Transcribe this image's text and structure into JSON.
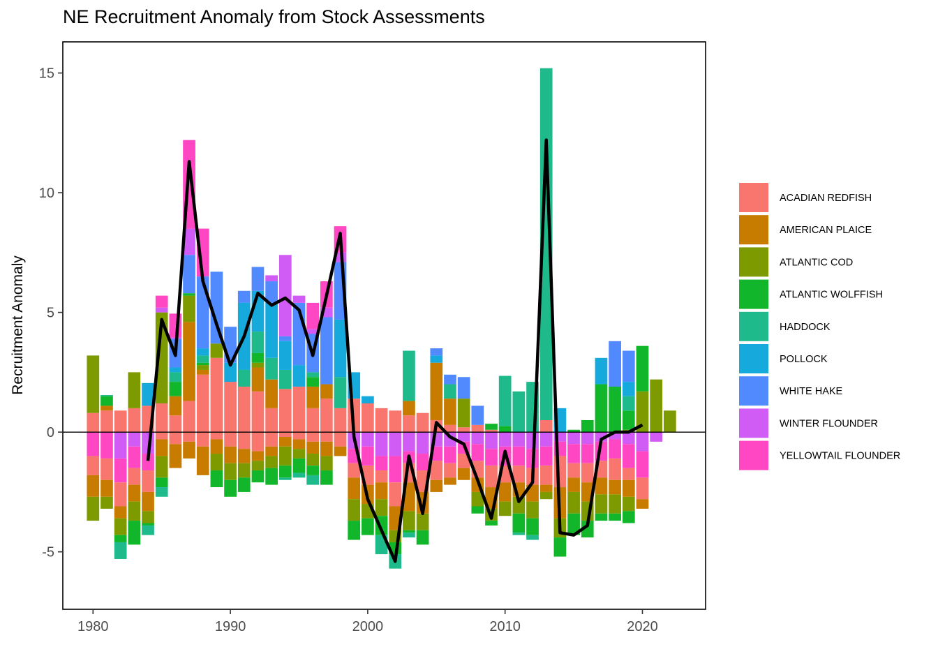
{
  "title": "NE Recruitment Anomaly from Stock Assessments",
  "chart_data": {
    "type": "bar",
    "stacked": true,
    "title": "NE Recruitment Anomaly from Stock Assessments",
    "xlabel": "",
    "ylabel": "Recruitment Anomaly",
    "xlim": [
      1977.8,
      2024.6
    ],
    "ylim": [
      -7.4,
      16.3
    ],
    "x_ticks": [
      1980,
      1990,
      2000,
      2010,
      2020
    ],
    "y_ticks": [
      -5,
      0,
      5,
      10,
      15
    ],
    "y_tick_labels": [
      "-5",
      "0",
      "5",
      "10",
      "15"
    ],
    "grid": false,
    "legend_position": "right",
    "zero_line": true,
    "series": [
      {
        "name": "ACADIAN REDFISH",
        "color": "#F8766D"
      },
      {
        "name": "AMERICAN PLAICE",
        "color": "#C77C00"
      },
      {
        "name": "ATLANTIC COD",
        "color": "#7D9A00"
      },
      {
        "name": "ATLANTIC WOLFFISH",
        "color": "#12B62A"
      },
      {
        "name": "HADDOCK",
        "color": "#1EBA8B"
      },
      {
        "name": "POLLOCK",
        "color": "#16AADC"
      },
      {
        "name": "WHITE HAKE",
        "color": "#5189FF"
      },
      {
        "name": "WINTER FLOUNDER",
        "color": "#D15CF5"
      },
      {
        "name": "YELLOWTAIL FLOUNDER",
        "color": "#FF47C3"
      }
    ],
    "years": [
      1980,
      1981,
      1982,
      1983,
      1984,
      1985,
      1986,
      1987,
      1988,
      1989,
      1990,
      1991,
      1992,
      1993,
      1994,
      1995,
      1996,
      1997,
      1998,
      1999,
      2000,
      2001,
      2002,
      2003,
      2004,
      2005,
      2006,
      2007,
      2008,
      2009,
      2010,
      2011,
      2012,
      2013,
      2014,
      2015,
      2016,
      2017,
      2018,
      2019,
      2020,
      2021,
      2022
    ],
    "values": [
      [
        0.8,
        0,
        2.4,
        0,
        0,
        0,
        0,
        0,
        -1.0,
        -0.8,
        -0.9,
        -1.0
      ],
      [
        0.9,
        0.2,
        0,
        0.4,
        0.05,
        0,
        0,
        0,
        -1.1,
        -0.9,
        -0.7,
        -0.5
      ],
      [
        0.9,
        0,
        0,
        0,
        0,
        0,
        0,
        -1.1,
        -1.0,
        -1.0,
        -0.5,
        -0.7,
        -0.3,
        -0.7
      ],
      [
        1.0,
        0,
        1.5,
        0,
        0,
        0,
        0,
        -0.6,
        -0.9,
        -0.7,
        -0.7,
        -0.8,
        -1.0
      ],
      [
        1.1,
        0,
        0,
        0,
        0,
        0.95,
        0,
        -0.9,
        -0.7,
        -0.9,
        -0.8,
        -0.5,
        -0.1,
        -0.4
      ],
      [
        1.2,
        0,
        3.8,
        0,
        0,
        0,
        0,
        0.2,
        0.5,
        -0.3,
        -0.7,
        -0.9,
        -0.4,
        -0.4
      ],
      [
        0.7,
        0.8,
        0,
        0.6,
        0.4,
        0.2,
        1.2,
        0.05,
        1.0,
        -0.5,
        -1.0
      ],
      [
        1.3,
        3.3,
        1.1,
        0.1,
        0,
        0,
        1.6,
        1.1,
        3.7,
        -0.4,
        -0.7
      ],
      [
        2.4,
        0.2,
        0.2,
        0.1,
        0.3,
        0.3,
        3.0,
        0,
        2.0,
        -0.6,
        -1.2
      ],
      [
        3.1,
        0,
        0.6,
        0,
        0,
        0,
        3.0,
        0,
        0,
        -0.3,
        -0.6,
        -0.7,
        -0.7
      ],
      [
        2.1,
        0,
        0,
        0,
        0,
        0.8,
        1.5,
        0,
        0,
        -0.6,
        -0.7,
        -0.7,
        -0.7
      ],
      [
        1.9,
        0,
        0,
        0,
        0.7,
        2.8,
        0.5,
        0,
        0,
        -0.7,
        -0.6,
        -0.6,
        -0.6
      ],
      [
        1.7,
        1.0,
        0.2,
        0.4,
        0.9,
        1.7,
        1.0,
        0,
        0,
        -0.8,
        -0.4,
        -0.4,
        -0.5
      ],
      [
        1.0,
        1.2,
        0,
        0,
        0.9,
        2.3,
        0.9,
        0.25,
        0,
        -0.6,
        -0.4,
        -0.5,
        -0.7
      ],
      [
        1.8,
        0,
        0,
        0,
        0.8,
        1.2,
        0.2,
        3.4,
        0,
        -0.2,
        -0.4,
        -0.8,
        -0.5,
        -0.1
      ],
      [
        1.9,
        0,
        0,
        0,
        0,
        0.9,
        2.6,
        0.3,
        0,
        -0.3,
        -0.4,
        -0.4,
        -0.6,
        -0.2
      ],
      [
        1.0,
        0.9,
        0,
        0.4,
        0.2,
        0,
        1.6,
        0.2,
        1.1,
        -0.4,
        -0.5,
        -0.5,
        -0.4,
        -0.4
      ],
      [
        1.4,
        0.6,
        0,
        0,
        0,
        0,
        2.8,
        0.4,
        1.1,
        -0.4,
        -0.6,
        -0.6,
        -0.6
      ],
      [
        1.0,
        0,
        0,
        0,
        1.3,
        2.4,
        2.4,
        0.4,
        1.1,
        -0.6,
        -0.4
      ],
      [
        1.4,
        0,
        0,
        0,
        0,
        1.1,
        0,
        -0.7,
        -0.6,
        -0.6,
        -0.9,
        -0.9,
        -0.8
      ],
      [
        1.2,
        0,
        0,
        0,
        0,
        0.3,
        0,
        -0.6,
        -0.8,
        -0.8,
        -0.8,
        -0.6,
        -0.7
      ],
      [
        1.0,
        0,
        0,
        0,
        0,
        0,
        0,
        -1.0,
        -0.6,
        -0.5,
        -0.7,
        -0.7,
        -0.8,
        -0.8
      ],
      [
        0.9,
        0,
        0,
        0,
        0,
        0,
        0,
        -1.0,
        -1.1,
        -1.0,
        -1.0,
        -0.5,
        -0.5,
        -0.6
      ],
      [
        0.7,
        0.6,
        0,
        0,
        2.1,
        0,
        0,
        -0.8,
        -0.5,
        -0.8,
        -1.2,
        -0.8,
        -0.1,
        -0.2
      ],
      [
        0.8,
        0,
        0,
        0,
        0,
        0,
        0,
        -0.9,
        -0.7,
        -0.9,
        -0.9,
        -0.7,
        -0.6
      ],
      [
        0.5,
        2.4,
        0,
        0,
        0,
        0.3,
        0.3,
        -0.6,
        -0.6,
        -0.8,
        -0.5
      ],
      [
        0.3,
        1.1,
        0,
        0,
        0.6,
        0,
        0.4,
        -0.6,
        -0.7,
        -0.6,
        -0.3
      ],
      [
        0.2,
        0,
        1.2,
        0,
        0,
        0,
        0.9,
        -0.4,
        -0.5,
        -0.6,
        -0.5
      ],
      [
        0.3,
        0,
        0,
        0,
        0,
        0,
        0.8,
        -0.5,
        -0.7,
        -0.7,
        -0.6,
        -0.6,
        -0.3
      ],
      [
        0.1,
        0,
        0,
        0.25,
        0,
        0,
        0,
        -0.7,
        -0.7,
        -0.9,
        -0.9,
        -0.5,
        -0.2
      ],
      [
        0,
        0,
        0,
        0.25,
        2.1,
        0,
        0,
        -0.6,
        -0.8,
        -0.7,
        -0.8,
        -0.6
      ],
      [
        0,
        0,
        0,
        0,
        1.7,
        0,
        0,
        -0.6,
        -0.8,
        -0.7,
        -0.6,
        -0.7,
        -0.8,
        -0.1
      ],
      [
        0,
        0,
        0,
        0,
        2.1,
        0,
        0,
        -0.7,
        -0.8,
        -0.7,
        -0.7,
        -0.7,
        -0.7,
        -0.2
      ],
      [
        0.5,
        0,
        0,
        0,
        14.7,
        0,
        0,
        -0.6,
        -0.8,
        -0.8,
        -0.3,
        -0.3
      ],
      [
        0,
        0,
        0,
        0,
        0,
        1.0,
        0,
        -0.4,
        -0.6,
        -1.3,
        -1.3,
        -0.8,
        -0.8
      ],
      [
        0,
        0,
        0,
        0.1,
        0,
        0,
        0,
        -0.5,
        -0.8,
        -0.6,
        -0.6,
        -0.9,
        -0.9
      ],
      [
        0,
        0,
        0,
        0.5,
        0,
        0,
        0,
        -0.5,
        -0.8,
        -0.8,
        -0.8,
        -0.8,
        -0.7
      ],
      [
        0,
        0,
        0,
        2.0,
        0,
        1.1,
        0,
        -0.4,
        -0.8,
        -0.7,
        -0.7,
        -0.8,
        -0.3
      ],
      [
        0,
        0,
        0,
        1.9,
        0,
        0,
        1.9,
        -0.3,
        -0.8,
        -0.9,
        -0.6,
        -0.8,
        -0.3
      ],
      [
        0,
        0,
        0.1,
        0.8,
        0.6,
        0.6,
        1.3,
        -0.5,
        -1.0,
        -0.5,
        -0.7,
        -0.6,
        -0.5
      ],
      [
        0,
        0,
        1.7,
        1.9,
        0,
        0,
        0,
        -0.8,
        -1.1,
        -0.9,
        -0.4
      ],
      [
        0,
        0,
        2.2,
        0,
        0,
        0,
        0,
        -0.4
      ],
      [
        0,
        0,
        0.9,
        0,
        0,
        0,
        0
      ]
    ],
    "line": {
      "name": "Total recruitment anomaly",
      "color": "#000000",
      "x": [
        1984,
        1985,
        1986,
        1987,
        1988,
        1989,
        1990,
        1991,
        1992,
        1993,
        1994,
        1995,
        1996,
        1997,
        1998,
        1999,
        2000,
        2001,
        2002,
        2003,
        2004,
        2005,
        2006,
        2007,
        2008,
        2009,
        2010,
        2011,
        2012,
        2013,
        2014,
        2015,
        2016,
        2017,
        2018,
        2019,
        2020
      ],
      "y": [
        -1.2,
        4.7,
        3.2,
        11.3,
        6.3,
        4.5,
        2.8,
        4.0,
        5.8,
        5.3,
        5.6,
        5.1,
        3.2,
        5.7,
        8.3,
        -0.2,
        -2.8,
        -4.1,
        -5.4,
        -1.0,
        -3.4,
        0.4,
        -0.2,
        -0.5,
        -2.0,
        -3.6,
        -0.8,
        -2.9,
        -2.1,
        12.2,
        -4.2,
        -4.3,
        -3.9,
        -0.3,
        0.0,
        0.0,
        0.3
      ]
    }
  }
}
